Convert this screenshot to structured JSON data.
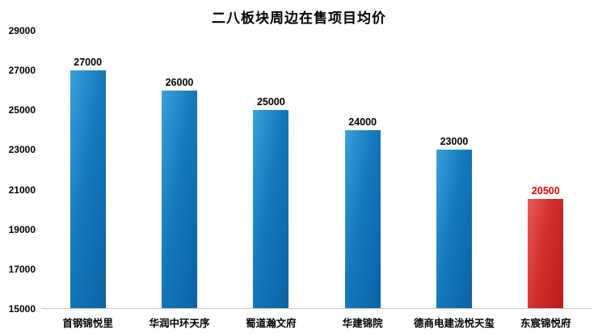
{
  "chart_data": {
    "type": "bar",
    "title": "二八板块周边在售项目均价",
    "categories": [
      "首钢锦悦里",
      "华润中环天序",
      "蜀道瀚文府",
      "华建锦院",
      "德商电建泷悦天玺",
      "东宸锦悦府"
    ],
    "values": [
      27000,
      26000,
      25000,
      24000,
      23000,
      20500
    ],
    "bar_colors": [
      "blue",
      "blue",
      "blue",
      "blue",
      "blue",
      "red"
    ],
    "value_label_colors": [
      "#000000",
      "#000000",
      "#000000",
      "#000000",
      "#000000",
      "#e60000"
    ],
    "ylim": [
      15000,
      29000
    ],
    "yticks": [
      29000,
      27000,
      25000,
      23000,
      21000,
      19000,
      17000,
      15000
    ],
    "grid": false,
    "legend": false,
    "xlabel": "",
    "ylabel": "",
    "colors": {
      "bar_blue_dark": "#0b62a4",
      "bar_blue_light": "#3aa0dc",
      "bar_red_dark": "#b71c1c",
      "bar_red_light": "#e85b5b",
      "highlight_value_label": "#e60000",
      "text": "#000000",
      "background": "#ffffff"
    }
  }
}
